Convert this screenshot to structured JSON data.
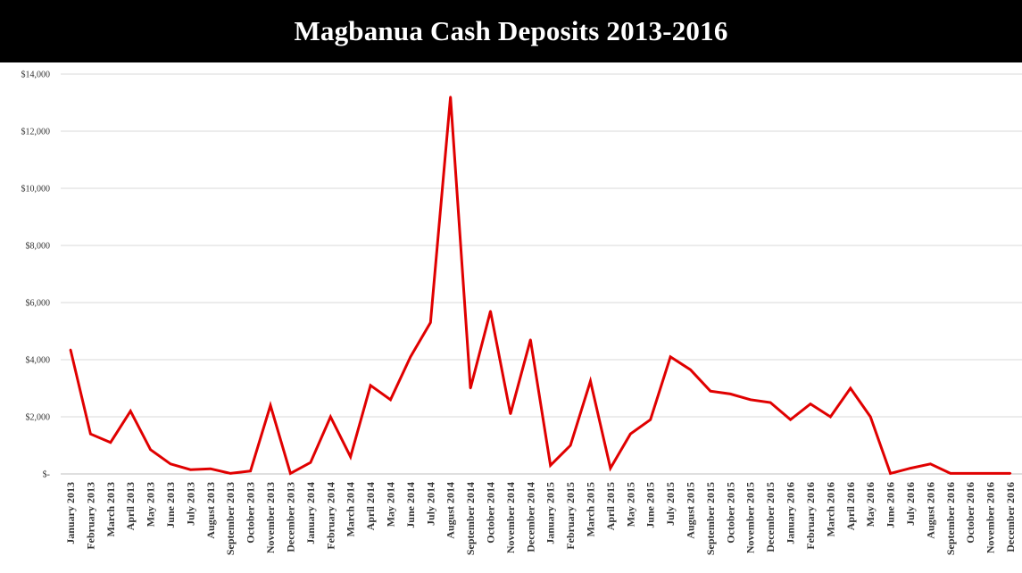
{
  "title": "Magbanua Cash Deposits 2013-2016",
  "chart_data": {
    "type": "line",
    "title": "Magbanua Cash Deposits 2013-2016",
    "xlabel": "",
    "ylabel": "",
    "ylim": [
      0,
      14000
    ],
    "y_ticks": [
      {
        "value": 0,
        "label": "$-"
      },
      {
        "value": 2000,
        "label": "$2,000"
      },
      {
        "value": 4000,
        "label": "$4,000"
      },
      {
        "value": 6000,
        "label": "$6,000"
      },
      {
        "value": 8000,
        "label": "$8,000"
      },
      {
        "value": 10000,
        "label": "$10,000"
      },
      {
        "value": 12000,
        "label": "$12,000"
      },
      {
        "value": 14000,
        "label": "$14,000"
      }
    ],
    "grid": "horizontal",
    "legend": "none",
    "line_color": "#e00000",
    "categories": [
      "January 2013",
      "February 2013",
      "March 2013",
      "April 2013",
      "May 2013",
      "June 2013",
      "July 2013",
      "August 2013",
      "September 2013",
      "October 2013",
      "November 2013",
      "December 2013",
      "January 2014",
      "February 2014",
      "March 2014",
      "April 2014",
      "May 2014",
      "June 2014",
      "July 2014",
      "August 2014",
      "September 2014",
      "October 2014",
      "November 2014",
      "December 2014",
      "January 2015",
      "February 2015",
      "March 2015",
      "April 2015",
      "May 2015",
      "June 2015",
      "July 2015",
      "August 2015",
      "September 2015",
      "October 2015",
      "November 2015",
      "December 2015",
      "January 2016",
      "February 2016",
      "March 2016",
      "April 2016",
      "May 2016",
      "June 2016",
      "July 2016",
      "August 2016",
      "September 2016",
      "October 2016",
      "November 2016",
      "December 2016"
    ],
    "series": [
      {
        "values": [
          4350,
          1400,
          1100,
          2200,
          850,
          350,
          150,
          180,
          20,
          100,
          2400,
          20,
          400,
          2000,
          600,
          3100,
          2600,
          4100,
          5300,
          13200,
          3000,
          5700,
          2100,
          4700,
          300,
          1000,
          3250,
          200,
          1400,
          1900,
          4100,
          3650,
          2900,
          2800,
          2600,
          2500,
          1900,
          2450,
          2000,
          3000,
          2000,
          20,
          200,
          350,
          20,
          20,
          20,
          20
        ]
      }
    ]
  }
}
